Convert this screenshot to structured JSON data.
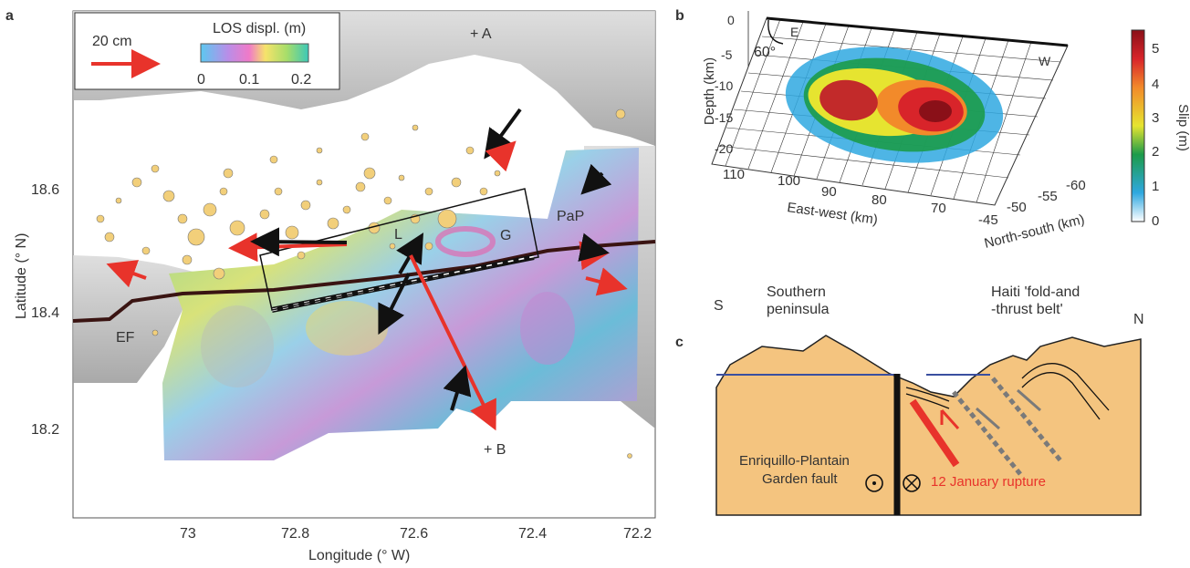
{
  "panel_a": {
    "letter": "a",
    "scale_label": "20 cm",
    "colorbar_title": "LOS displ. (m)",
    "colorbar_ticks": [
      "0",
      "0.1",
      "0.2"
    ],
    "ylabel": "Latitude (° N)",
    "xlabel": "Longitude (° W)",
    "yticks": [
      "18.6",
      "18.4",
      "18.2"
    ],
    "xticks": [
      "73",
      "72.8",
      "72.6",
      "72.4",
      "72.2"
    ],
    "labels": {
      "A": "+ A",
      "B": "+ B",
      "L": "L",
      "G": "G",
      "PaP": "PaP",
      "EF": "EF"
    }
  },
  "panel_b": {
    "letter": "b",
    "zlabel": "Depth (km)",
    "zticks": [
      "0",
      "-5",
      "-10",
      "-15",
      "-20"
    ],
    "xlabel": "East-west (km)",
    "xticks": [
      "110",
      "100",
      "90",
      "80",
      "70"
    ],
    "ylabel": "North-south (km)",
    "yticks": [
      "-45",
      "-50",
      "-55",
      "-60"
    ],
    "dip": "60°",
    "E": "E",
    "W": "W",
    "colorbar_label": "Slip (m)",
    "colorbar_ticks": [
      "5",
      "4",
      "3",
      "2",
      "1",
      "0"
    ]
  },
  "panel_c": {
    "letter": "c",
    "S": "S",
    "N": "N",
    "southern": "Southern\npeninsula",
    "haiti": "Haiti 'fold-and\n-thrust belt'",
    "fault": "Enriquillo-Plantain\nGarden fault",
    "rupture": "12 January  rupture"
  },
  "colors": {
    "red": "#e8332b",
    "terrain": "#f4c47f",
    "sea": "#3a4fa0"
  }
}
